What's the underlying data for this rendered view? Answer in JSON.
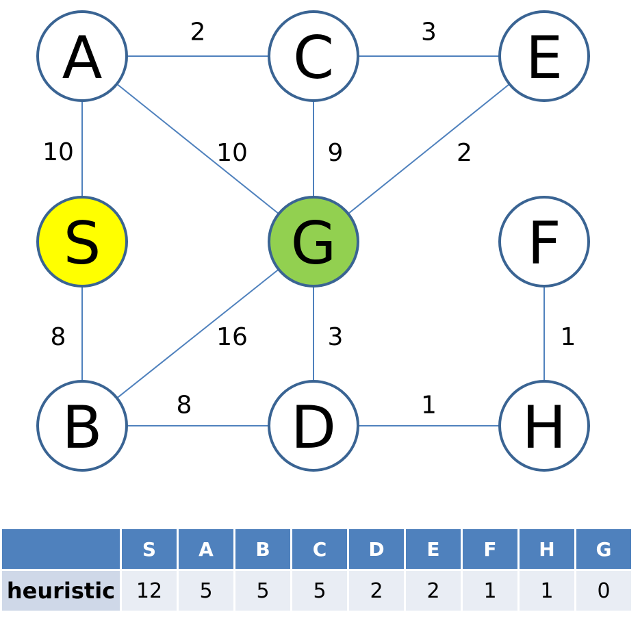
{
  "graph": {
    "nodes": [
      {
        "id": "A",
        "label": "A",
        "fill": "#ffffff"
      },
      {
        "id": "C",
        "label": "C",
        "fill": "#ffffff"
      },
      {
        "id": "E",
        "label": "E",
        "fill": "#ffffff"
      },
      {
        "id": "S",
        "label": "S",
        "fill": "#ffff00"
      },
      {
        "id": "G",
        "label": "G",
        "fill": "#92d050"
      },
      {
        "id": "F",
        "label": "F",
        "fill": "#ffffff"
      },
      {
        "id": "B",
        "label": "B",
        "fill": "#ffffff"
      },
      {
        "id": "D",
        "label": "D",
        "fill": "#ffffff"
      },
      {
        "id": "H",
        "label": "H",
        "fill": "#ffffff"
      }
    ],
    "edges": [
      {
        "from": "A",
        "to": "C",
        "weight": "2"
      },
      {
        "from": "C",
        "to": "E",
        "weight": "3"
      },
      {
        "from": "A",
        "to": "S",
        "weight": "10"
      },
      {
        "from": "A",
        "to": "G",
        "weight": "10"
      },
      {
        "from": "C",
        "to": "G",
        "weight": "9"
      },
      {
        "from": "E",
        "to": "G",
        "weight": "2"
      },
      {
        "from": "S",
        "to": "B",
        "weight": "8"
      },
      {
        "from": "G",
        "to": "B",
        "weight": "16"
      },
      {
        "from": "G",
        "to": "D",
        "weight": "3"
      },
      {
        "from": "F",
        "to": "H",
        "weight": "1"
      },
      {
        "from": "B",
        "to": "D",
        "weight": "8"
      },
      {
        "from": "D",
        "to": "H",
        "weight": "1"
      }
    ]
  },
  "table": {
    "row_label": "heuristic",
    "columns": [
      "S",
      "A",
      "B",
      "C",
      "D",
      "E",
      "F",
      "H",
      "G"
    ],
    "values": [
      "12",
      "5",
      "5",
      "5",
      "2",
      "2",
      "1",
      "1",
      "0"
    ]
  }
}
